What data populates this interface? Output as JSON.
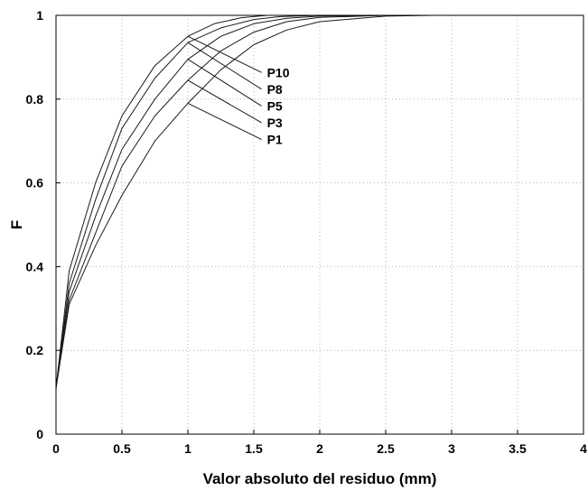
{
  "chart_data": {
    "type": "line",
    "title": "",
    "xlabel": "Valor absoluto del residuo (mm)",
    "ylabel": "F",
    "xlim": [
      0,
      4
    ],
    "ylim": [
      0,
      1
    ],
    "xticks": [
      "0",
      "0.5",
      "1",
      "1.5",
      "2",
      "2.5",
      "3",
      "3.5",
      "4"
    ],
    "yticks": [
      "0",
      "0.2",
      "0.4",
      "0.6",
      "0.8",
      "1"
    ],
    "grid": true,
    "grid_style": "dotted",
    "legend": "none",
    "line_color": "#1a1a1a",
    "series": [
      {
        "name": "P10",
        "x": [
          0,
          0.1,
          0.3,
          0.5,
          0.75,
          1.0,
          1.2,
          1.4,
          1.6,
          2.0,
          2.5,
          2.85
        ],
        "y": [
          0.11,
          0.39,
          0.6,
          0.76,
          0.88,
          0.95,
          0.98,
          0.994,
          1.0,
          1.0,
          1.0,
          1.0
        ]
      },
      {
        "name": "P8",
        "x": [
          0,
          0.1,
          0.3,
          0.5,
          0.75,
          1.0,
          1.25,
          1.5,
          1.7,
          2.0,
          2.5,
          2.85
        ],
        "y": [
          0.11,
          0.36,
          0.56,
          0.73,
          0.85,
          0.935,
          0.97,
          0.99,
          0.997,
          1.0,
          1.0,
          1.0
        ]
      },
      {
        "name": "P5",
        "x": [
          0,
          0.1,
          0.3,
          0.5,
          0.75,
          1.0,
          1.25,
          1.5,
          1.75,
          2.0,
          2.5,
          2.85
        ],
        "y": [
          0.11,
          0.34,
          0.52,
          0.68,
          0.8,
          0.895,
          0.95,
          0.98,
          0.993,
          0.998,
          1.0,
          1.0
        ]
      },
      {
        "name": "P3",
        "x": [
          0,
          0.1,
          0.3,
          0.5,
          0.75,
          1.0,
          1.25,
          1.5,
          1.75,
          2.0,
          2.5,
          2.85
        ],
        "y": [
          0.11,
          0.32,
          0.48,
          0.64,
          0.76,
          0.845,
          0.915,
          0.96,
          0.985,
          0.995,
          1.0,
          1.0
        ]
      },
      {
        "name": "P1",
        "x": [
          0,
          0.1,
          0.3,
          0.5,
          0.75,
          1.0,
          1.25,
          1.5,
          1.75,
          2.0,
          2.5,
          2.85
        ],
        "y": [
          0.11,
          0.31,
          0.45,
          0.57,
          0.7,
          0.79,
          0.87,
          0.93,
          0.965,
          0.985,
          0.998,
          1.0
        ]
      }
    ],
    "annotations": [
      {
        "series": "P10",
        "text": "P10",
        "from": [
          1.0,
          0.95
        ],
        "label_at": [
          1.6,
          0.855
        ]
      },
      {
        "series": "P8",
        "text": "P8",
        "from": [
          1.0,
          0.935
        ],
        "label_at": [
          1.6,
          0.815
        ]
      },
      {
        "series": "P5",
        "text": "P5",
        "from": [
          1.0,
          0.895
        ],
        "label_at": [
          1.6,
          0.775
        ]
      },
      {
        "series": "P3",
        "text": "P3",
        "from": [
          1.0,
          0.845
        ],
        "label_at": [
          1.6,
          0.735
        ]
      },
      {
        "series": "P1",
        "text": "P1",
        "from": [
          1.0,
          0.79
        ],
        "label_at": [
          1.6,
          0.695
        ]
      }
    ]
  }
}
